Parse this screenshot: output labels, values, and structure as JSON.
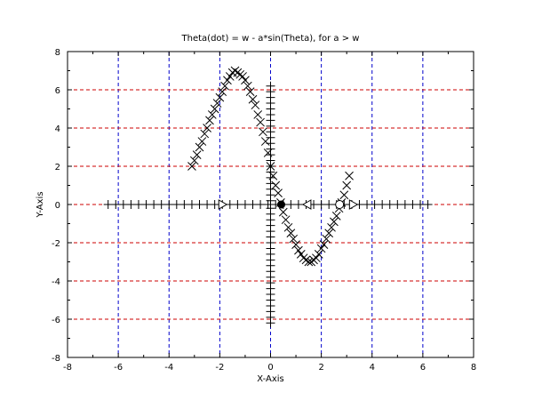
{
  "chart_data": {
    "type": "scatter",
    "title": "Theta(dot) = w - a*sin(Theta), for a > w",
    "xlabel": "X-Axis",
    "ylabel": "Y-Axis",
    "xlim": [
      -8,
      8
    ],
    "ylim": [
      -8,
      8
    ],
    "x_ticks": [
      -8,
      -6,
      -4,
      -2,
      0,
      2,
      4,
      6,
      8
    ],
    "y_ticks": [
      -8,
      -6,
      -4,
      -2,
      0,
      2,
      4,
      6,
      8
    ],
    "grid": true,
    "colors": {
      "x_grid": "#0000cc",
      "y_grid": "#cc0000",
      "markers": "#000000"
    },
    "series": [
      {
        "marker": "x",
        "points": [
          [
            -3.1,
            2.0
          ],
          [
            -3.0,
            2.3
          ],
          [
            -2.9,
            2.6
          ],
          [
            -2.8,
            3.0
          ],
          [
            -2.7,
            3.3
          ],
          [
            -2.6,
            3.7
          ],
          [
            -2.5,
            4.0
          ],
          [
            -2.4,
            4.4
          ],
          [
            -2.3,
            4.7
          ],
          [
            -2.2,
            5.0
          ],
          [
            -2.1,
            5.3
          ],
          [
            -2.0,
            5.6
          ],
          [
            -1.9,
            5.9
          ],
          [
            -1.8,
            6.2
          ],
          [
            -1.7,
            6.5
          ],
          [
            -1.6,
            6.7
          ],
          [
            -1.5,
            6.9
          ],
          [
            -1.4,
            7.0
          ],
          [
            -1.3,
            6.9
          ],
          [
            -1.2,
            6.8
          ],
          [
            -1.1,
            6.7
          ],
          [
            -1.0,
            6.5
          ],
          [
            -0.9,
            6.2
          ],
          [
            -0.8,
            5.9
          ],
          [
            -0.7,
            5.5
          ],
          [
            -0.6,
            5.2
          ],
          [
            -0.5,
            4.7
          ],
          [
            -0.4,
            4.3
          ],
          [
            -0.3,
            3.8
          ],
          [
            -0.2,
            3.3
          ],
          [
            -0.1,
            2.7
          ],
          [
            0.0,
            2.0
          ],
          [
            0.1,
            1.5
          ],
          [
            0.2,
            1.0
          ],
          [
            0.3,
            0.6
          ],
          [
            0.4,
            0.1
          ],
          [
            0.5,
            -0.4
          ],
          [
            0.6,
            -0.8
          ],
          [
            0.7,
            -1.2
          ],
          [
            0.8,
            -1.5
          ],
          [
            0.9,
            -1.8
          ],
          [
            1.0,
            -2.1
          ],
          [
            1.1,
            -2.4
          ],
          [
            1.2,
            -2.6
          ],
          [
            1.3,
            -2.8
          ],
          [
            1.4,
            -2.9
          ],
          [
            1.5,
            -3.0
          ],
          [
            1.6,
            -3.0
          ],
          [
            1.7,
            -2.9
          ],
          [
            1.8,
            -2.8
          ],
          [
            1.9,
            -2.6
          ],
          [
            2.0,
            -2.3
          ],
          [
            2.1,
            -2.1
          ],
          [
            2.2,
            -1.8
          ],
          [
            2.3,
            -1.5
          ],
          [
            2.4,
            -1.2
          ],
          [
            2.5,
            -0.9
          ],
          [
            2.6,
            -0.6
          ],
          [
            2.7,
            -0.2
          ],
          [
            2.8,
            0.1
          ],
          [
            2.9,
            0.5
          ],
          [
            3.0,
            1.0
          ],
          [
            3.1,
            1.5
          ]
        ]
      },
      {
        "marker": "plus",
        "points": [
          [
            -6.4,
            0
          ],
          [
            -6.1,
            0
          ],
          [
            -5.8,
            0
          ],
          [
            -5.5,
            0
          ],
          [
            -5.2,
            0
          ],
          [
            -4.9,
            0
          ],
          [
            -4.6,
            0
          ],
          [
            -4.3,
            0
          ],
          [
            -4.0,
            0
          ],
          [
            -3.7,
            0
          ],
          [
            -3.4,
            0
          ],
          [
            -3.1,
            0
          ],
          [
            -2.8,
            0
          ],
          [
            -2.5,
            0
          ],
          [
            -2.2,
            0
          ],
          [
            -1.9,
            0
          ],
          [
            -1.6,
            0
          ],
          [
            -1.3,
            0
          ],
          [
            -1.0,
            0
          ],
          [
            -0.7,
            0
          ],
          [
            -0.4,
            0
          ],
          [
            -0.1,
            0
          ],
          [
            0.2,
            0
          ],
          [
            0.5,
            0
          ],
          [
            0.8,
            0
          ],
          [
            1.1,
            0
          ],
          [
            1.4,
            0
          ],
          [
            1.7,
            0
          ],
          [
            2.0,
            0
          ],
          [
            2.3,
            0
          ],
          [
            2.6,
            0
          ],
          [
            2.9,
            0
          ],
          [
            3.2,
            0
          ],
          [
            3.5,
            0
          ],
          [
            3.8,
            0
          ],
          [
            4.1,
            0
          ],
          [
            4.4,
            0
          ],
          [
            4.7,
            0
          ],
          [
            5.0,
            0
          ],
          [
            5.3,
            0
          ],
          [
            5.6,
            0
          ],
          [
            5.9,
            0
          ],
          [
            6.2,
            0
          ],
          [
            0,
            -6.2
          ],
          [
            0,
            -5.9
          ],
          [
            0,
            -5.6
          ],
          [
            0,
            -5.3
          ],
          [
            0,
            -5.0
          ],
          [
            0,
            -4.7
          ],
          [
            0,
            -4.4
          ],
          [
            0,
            -4.1
          ],
          [
            0,
            -3.8
          ],
          [
            0,
            -3.5
          ],
          [
            0,
            -3.2
          ],
          [
            0,
            -2.9
          ],
          [
            0,
            -2.6
          ],
          [
            0,
            -2.3
          ],
          [
            0,
            -2.0
          ],
          [
            0,
            -1.7
          ],
          [
            0,
            -1.4
          ],
          [
            0,
            -1.1
          ],
          [
            0,
            -0.8
          ],
          [
            0,
            -0.5
          ],
          [
            0,
            -0.2
          ],
          [
            0,
            0.2
          ],
          [
            0,
            0.5
          ],
          [
            0,
            0.8
          ],
          [
            0,
            1.1
          ],
          [
            0,
            1.4
          ],
          [
            0,
            1.7
          ],
          [
            0,
            2.0
          ],
          [
            0,
            2.3
          ],
          [
            0,
            2.6
          ],
          [
            0,
            2.9
          ],
          [
            0,
            3.2
          ],
          [
            0,
            3.5
          ],
          [
            0,
            3.8
          ],
          [
            0,
            4.1
          ],
          [
            0,
            4.4
          ],
          [
            0,
            4.7
          ],
          [
            0,
            5.0
          ],
          [
            0,
            5.3
          ],
          [
            0,
            5.6
          ],
          [
            0,
            5.9
          ],
          [
            0,
            6.2
          ]
        ]
      },
      {
        "marker": "triangle-right",
        "points": [
          [
            -1.9,
            0
          ],
          [
            3.25,
            0
          ]
        ]
      },
      {
        "marker": "triangle-left",
        "points": [
          [
            1.45,
            0
          ]
        ]
      },
      {
        "marker": "filled-circle",
        "points": [
          [
            0.42,
            0
          ]
        ]
      },
      {
        "marker": "open-circle",
        "points": [
          [
            2.72,
            0
          ]
        ]
      }
    ]
  }
}
